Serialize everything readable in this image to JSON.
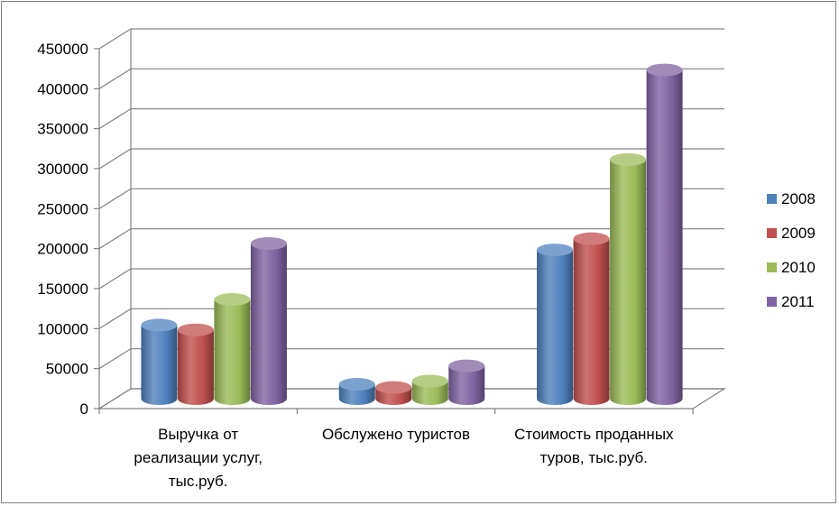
{
  "chart_data": {
    "type": "bar",
    "categories": [
      [
        "Выручка от",
        "реализации услуг,",
        "тыс.руб."
      ],
      [
        "Обслужено туристов"
      ],
      [
        "Стоимость проданных",
        "туров, тыс.руб."
      ]
    ],
    "series": [
      {
        "name": "2008",
        "color": "#4f81bd",
        "values": [
          92000,
          18000,
          186000
        ]
      },
      {
        "name": "2009",
        "color": "#c0504d",
        "values": [
          86000,
          14000,
          200000
        ]
      },
      {
        "name": "2010",
        "color": "#9bbb59",
        "values": [
          124000,
          22000,
          299000
        ]
      },
      {
        "name": "2011",
        "color": "#8064a2",
        "values": [
          194000,
          41000,
          411000
        ]
      }
    ],
    "yticks": [
      "0",
      "50000",
      "100000",
      "150000",
      "200000",
      "250000",
      "300000",
      "350000",
      "400000",
      "450000"
    ],
    "ylim": [
      0,
      450000
    ],
    "grid": true,
    "legend_position": "right",
    "style": "3d-cylinder"
  }
}
